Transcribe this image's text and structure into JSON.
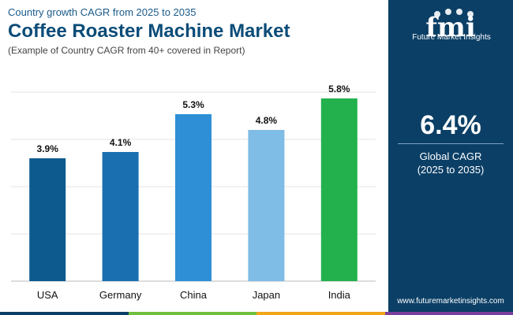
{
  "header": {
    "subtitle": "Country growth CAGR from 2025 to 2035",
    "title": "Coffee Roaster Machine Market",
    "note": "(Example of Country CAGR from 40+ covered in Report)"
  },
  "chart_data": {
    "type": "bar",
    "categories": [
      "USA",
      "Germany",
      "China",
      "Japan",
      "India"
    ],
    "values": [
      3.9,
      4.1,
      5.3,
      4.8,
      5.8
    ],
    "value_labels": [
      "3.9%",
      "4.1%",
      "5.3%",
      "4.8%",
      "5.8%"
    ],
    "colors": [
      "#0d5a8f",
      "#1a6fb0",
      "#2e8fd6",
      "#7fbce6",
      "#22b14c"
    ],
    "ylim": [
      0,
      6
    ],
    "grid": true
  },
  "sidebar": {
    "logo_letters": "fmi",
    "logo_text": "Future Market Insights",
    "value": "6.4%",
    "label_line1": "Global CAGR",
    "label_line2": "(2025 to 2035)",
    "url": "www.futuremarketinsights.com",
    "background": "#0b3f66"
  },
  "bottom_strip_colors": [
    "#0b3f66",
    "#6fbf3c",
    "#f2a51a",
    "#7a3f9a"
  ]
}
